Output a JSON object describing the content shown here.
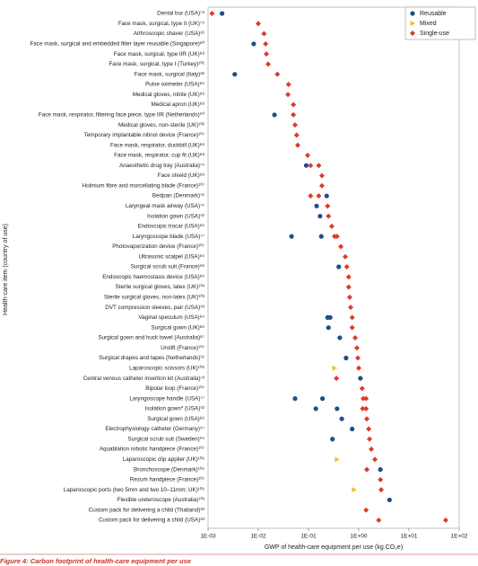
{
  "chart_data": {
    "type": "dotplot",
    "x_label": "GWP of health-care equipment per use (kg CO₂e)",
    "y_label": "Health-care item (country of use)",
    "caption": "Figure 4: Carbon footprint of health-care equipment per use",
    "xscale": "log",
    "xlim": [
      0.001,
      100
    ],
    "xticks": [
      {
        "value": 0.001,
        "label": "1E-03"
      },
      {
        "value": 0.01,
        "label": "1E-02"
      },
      {
        "value": 0.1,
        "label": "1E-01"
      },
      {
        "value": 1,
        "label": "1E+00"
      },
      {
        "value": 10,
        "label": "1E+01"
      },
      {
        "value": 100,
        "label": "1E+02"
      }
    ],
    "legend": "top-right",
    "categories": [
      "Dental bur (USA)⁷⁸",
      "Face mask, surgical, type II (UK)⁷⁹",
      "Arthroscopic shaver (USA)⁸¹",
      "Face mask, surgical and embedded filter layer reusable (Singapore)⁸⁰",
      "Face mask, surgical, type IIR (UK)⁸⁸",
      "Face mask, surgical, type I (Turkey)¹⁰¹",
      "Face mask, surgical (Italy)⁸²",
      "Pulse oximeter (USA)⁸⁹",
      "Medical gloves, nitrile (UK)⁸⁸",
      "Medical apron (UK)⁸⁸",
      "Face mask, respirator, filtering face piece, type IIR (Netherlands)⁹⁰",
      "Medical gloves, non-sterile (UK)¹⁰²",
      "Temporary implantable nitinol device (France)¹⁰⁷",
      "Face mask, respirator, duckbill (UK)⁸⁸",
      "Face mask, respirator, cup fit (UK)⁸⁸",
      "Anaesthetic drug tray (Australia)⁷⁴",
      "Face shield (UK)⁸⁸",
      "Holmium fibre and morcellating blade (France)¹⁰⁷",
      "Bedpan (Denmark)⁷⁶",
      "Laryngeal mask airway (USA)⁷⁵",
      "Isolation gown (USA)⁹²",
      "Endoscopic trocar (USA)⁸⁵",
      "Laryngoscope blade (USA)⁷⁷",
      "Photovaporization device (France)¹⁰⁷",
      "Ultrasonic scalpel (USA)⁸⁵",
      "Surgical scrub suit (France)⁹⁶",
      "Endoscopic haemostasis device (USA)⁸⁵",
      "Sterile surgical gloves, latex (UK)¹⁰³",
      "Sterile surgical gloves, non-latex (UK)¹⁰³",
      "DVT compression sleeves, pair (USA)⁹³",
      "Vaginal speculum (USA)⁸⁴",
      "Surgical gown (UK)⁸⁶",
      "Surgical gown and huck towel (Australia)⁸⁷",
      "Urolift (France)¹⁰⁷",
      "Surgical drapes and tapes (Netherlands)⁹¹",
      "Laparoscopic scissors (UK)¹⁰⁶",
      "Central venous catheter insertion kit (Australia)⁷³",
      "Bipolar loop (France)¹⁰⁷",
      "Laryngoscope handle (USA)⁷⁷",
      "Isolation gown* (USA)⁹²",
      "Surgical gown (USA)⁸⁶",
      "Electrophysiology catheter (Germany)⁹⁷",
      "Surgical scrub suit (Sweden)⁹⁵",
      "Aquablation robotic handpiece (France)¹⁰⁷",
      "Laparoscopic clip applier (UK)¹⁰⁶",
      "Bronchoscope (Denmark)¹⁰⁵",
      "Rezum handpiece (France)¹⁰⁷",
      "Laparoscopic ports (two 5mm and two 10–11mm; UK)¹⁰⁶",
      "Flexible ureteroscope (Australia)¹⁰³",
      "Custom pack for delivering a child (Thailand)⁸³",
      "Custom pack for delivering a child (USA)⁸³"
    ],
    "series": [
      {
        "name": "Reusable",
        "color": "#1f4e8c",
        "marker": "circle",
        "values": [
          [
            0.0019
          ],
          [],
          [],
          [
            0.0081
          ],
          [],
          [],
          [
            0.0034
          ],
          [],
          [],
          [],
          [
            0.021
          ],
          [],
          [],
          [],
          [],
          [
            0.09
          ],
          [],
          [],
          [
            0.23
          ],
          [
            0.145
          ],
          [
            0.17
          ],
          [],
          [
            0.046,
            0.18
          ],
          [],
          [],
          [
            0.4
          ],
          [],
          [],
          [],
          [],
          [
            0.24,
            0.27
          ],
          [
            0.25
          ],
          [
            0.42
          ],
          [],
          [
            0.56
          ],
          [],
          [
            1.08
          ],
          [],
          [
            0.054,
            0.19
          ],
          [
            0.14,
            0.37
          ],
          [
            0.46
          ],
          [
            0.74
          ],
          [
            0.3
          ],
          [],
          [],
          [
            2.7
          ],
          [],
          [],
          [
            4.1
          ],
          [],
          []
        ]
      },
      {
        "name": "Mixed",
        "color": "#f0c419",
        "marker": "triangle",
        "values": [
          [],
          [],
          [],
          [],
          [],
          [],
          [],
          [],
          [],
          [],
          [],
          [],
          [],
          [],
          [],
          [],
          [],
          [],
          [],
          [],
          [],
          [],
          [],
          [],
          [],
          [],
          [],
          [],
          [],
          [],
          [],
          [],
          [],
          [],
          [],
          [
            0.33
          ],
          [],
          [],
          [],
          [],
          [],
          [],
          [],
          [],
          [
            0.37
          ],
          [],
          [],
          [
            0.81
          ],
          [],
          [],
          []
        ]
      },
      {
        "name": "Single-use",
        "color": "#e0392b",
        "marker": "diamond",
        "values": [
          [
            0.0012
          ],
          [
            0.01
          ],
          [
            0.013
          ],
          [
            0.014
          ],
          [
            0.0145
          ],
          [
            0.0157
          ],
          [
            0.024
          ],
          [
            0.04
          ],
          [
            0.039
          ],
          [
            0.05
          ],
          [
            0.05
          ],
          [
            0.054
          ],
          [
            0.058
          ],
          [
            0.061
          ],
          [
            0.096
          ],
          [
            0.11,
            0.16
          ],
          [
            0.185
          ],
          [
            0.185
          ],
          [
            0.11,
            0.16
          ],
          [
            0.24
          ],
          [
            0.25
          ],
          [
            0.29
          ],
          [
            0.33,
            0.37
          ],
          [
            0.44
          ],
          [
            0.54
          ],
          [
            0.58
          ],
          [
            0.63
          ],
          [
            0.63
          ],
          [
            0.66
          ],
          [
            0.69
          ],
          [
            0.74
          ],
          [
            0.74
          ],
          [
            0.85
          ],
          [
            0.92
          ],
          [
            0.96
          ],
          [
            1.0
          ],
          [
            0.36
          ],
          [
            1.17
          ],
          [
            1.23,
            1.4
          ],
          [
            1.2,
            1.4
          ],
          [
            1.45
          ],
          [
            1.58
          ],
          [
            1.64
          ],
          [
            1.78
          ],
          [
            2.1
          ],
          [
            1.45
          ],
          [
            2.7
          ],
          [
            2.8
          ],
          [],
          [
            1.4
          ],
          [
            2.5,
            54
          ]
        ]
      }
    ]
  }
}
